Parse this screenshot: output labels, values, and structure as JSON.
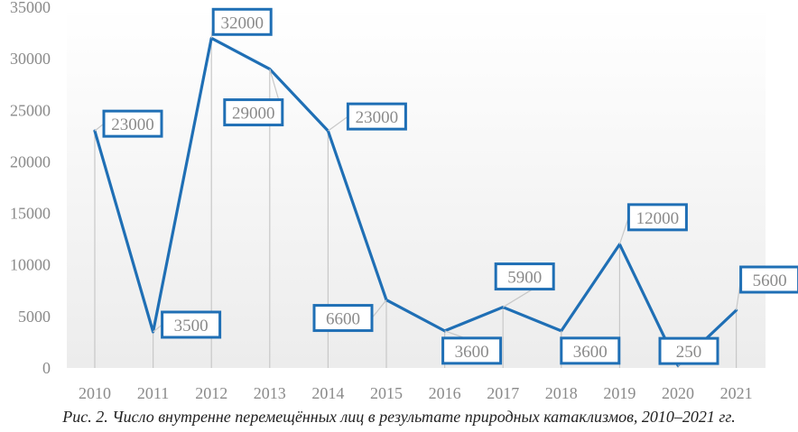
{
  "caption": "Рис. 2. Число внутренне перемещённых лиц в результате природных катаклизмов, 2010–2021 гг.",
  "colors": {
    "line": "#1f6fb5",
    "label_border": "#1f6fb5",
    "tick_text": "#8a8a8a",
    "drop_lines": "#c8c8c8",
    "plot_gradient_top": "#ffffff",
    "plot_gradient_bottom": "#ececec"
  },
  "chart_data": {
    "type": "line",
    "title": "",
    "xlabel": "",
    "ylabel": "",
    "categories": [
      "2010",
      "2011",
      "2012",
      "2013",
      "2014",
      "2015",
      "2016",
      "2017",
      "2018",
      "2019",
      "2020",
      "2021"
    ],
    "values": [
      23000,
      3500,
      32000,
      29000,
      23000,
      6600,
      3600,
      5900,
      3600,
      12000,
      250,
      5600
    ],
    "ylim": [
      0,
      35000
    ],
    "yticks": [
      0,
      5000,
      10000,
      15000,
      20000,
      25000,
      30000,
      35000
    ],
    "grid": false,
    "legend": "none",
    "data_labels": true,
    "drop_lines": true
  }
}
